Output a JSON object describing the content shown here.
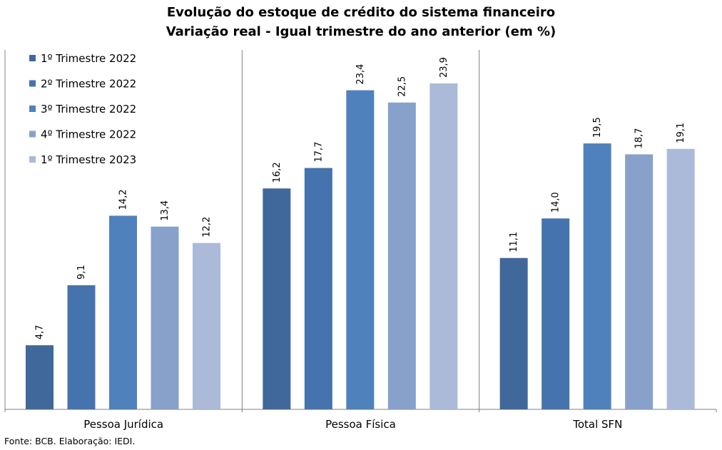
{
  "chart_data": {
    "type": "bar",
    "title": "Evolução do estoque de crédito do sistema financeiro",
    "subtitle": "Variação real - Igual trimestre do ano anterior (em %)",
    "categories": [
      "Pessoa Jurídica",
      "Pessoa Física",
      "Total SFN"
    ],
    "series": [
      {
        "name": "1º Trimestre 2022",
        "color": "#41689b",
        "values": [
          4.7,
          16.2,
          11.1
        ],
        "labels": [
          "4,7",
          "16,2",
          "11,1"
        ]
      },
      {
        "name": "2º Trimestre 2022",
        "color": "#4573ad",
        "values": [
          9.1,
          17.7,
          14.0
        ],
        "labels": [
          "9,1",
          "17,7",
          "14,0"
        ]
      },
      {
        "name": "3º Trimestre 2022",
        "color": "#4f81bd",
        "values": [
          14.2,
          23.4,
          19.5
        ],
        "labels": [
          "14,2",
          "23,4",
          "19,5"
        ]
      },
      {
        "name": "4º Trimestre 2022",
        "color": "#87a1ca",
        "values": [
          13.4,
          22.5,
          18.7
        ],
        "labels": [
          "13,4",
          "22,5",
          "18,7"
        ]
      },
      {
        "name": "1º Trimestre 2023",
        "color": "#aabad8",
        "values": [
          12.2,
          23.9,
          19.1
        ],
        "labels": [
          "12,2",
          "23,9",
          "19,1"
        ]
      }
    ],
    "ylim": [
      0,
      26
    ],
    "grid": false,
    "legend_position": "top-left"
  },
  "source": "Fonte: BCB. Elaboração: IEDI."
}
